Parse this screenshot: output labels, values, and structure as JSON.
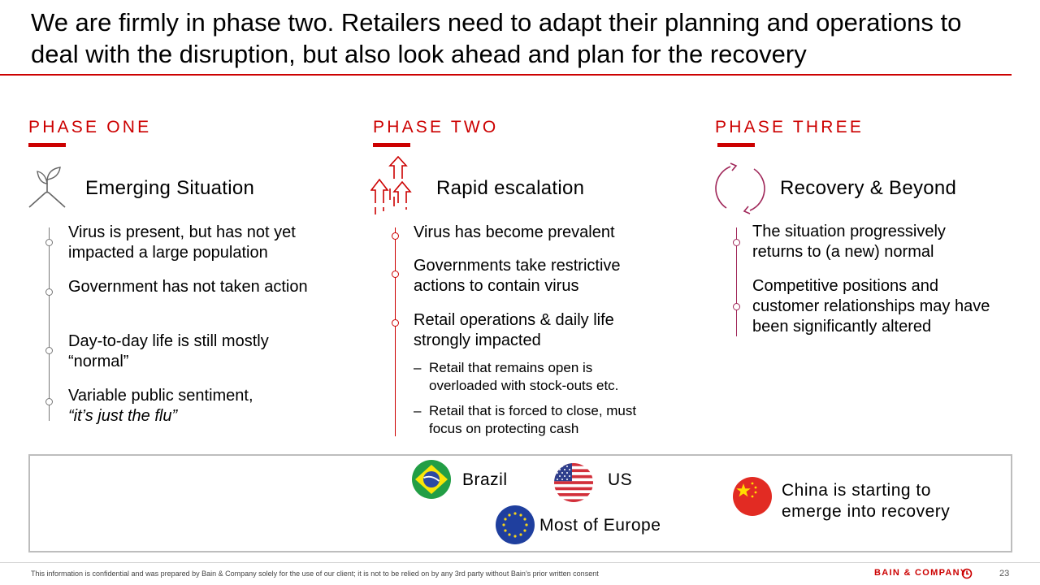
{
  "title": "We are firmly in phase two. Retailers need to adapt their planning and operations to deal with the disruption, but also look ahead and plan for the recovery",
  "colors": {
    "accent": "#cc0000",
    "phase_two_timeline": "#cc0000",
    "timeline_gray": "#777777",
    "phase_three_timeline": "#a0285a"
  },
  "phases": [
    {
      "label": "PHASE ONE",
      "icon": "plant-sprout-icon",
      "heading": "Emerging Situation",
      "bullets": [
        "Virus is present, but has not yet impacted a large population",
        "Government has not taken action",
        "Day-to-day life is still mostly “normal”",
        "Variable public sentiment,"
      ],
      "bullet_italic": "“it’s just the flu”"
    },
    {
      "label": "PHASE TWO",
      "icon": "escalating-arrows-icon",
      "heading": "Rapid escalation",
      "bullets": [
        "Virus has become prevalent",
        "Governments take restrictive actions to contain virus",
        "Retail operations & daily life strongly impacted"
      ],
      "sub_bullets": [
        "Retail that remains open is overloaded with stock-outs etc.",
        "Retail that is forced to close, must focus on protecting cash"
      ],
      "dash": "–"
    },
    {
      "label": "PHASE THREE",
      "icon": "cycle-arrows-icon",
      "heading": "Recovery & Beyond",
      "bullets": [
        "The situation progressively returns to (a new) normal",
        "Competitive positions and customer relationships may have been significantly altered"
      ]
    }
  ],
  "countries": {
    "brazil": "Brazil",
    "us": "US",
    "europe": "Most of Europe",
    "china": "China is starting to emerge into recovery"
  },
  "footer": {
    "note": "This information is confidential and was prepared by Bain & Company solely for the use of our client; it is not to be relied on by any 3rd party without Bain’s prior written consent",
    "brand": "BAIN & COMPANY",
    "page": "23"
  }
}
